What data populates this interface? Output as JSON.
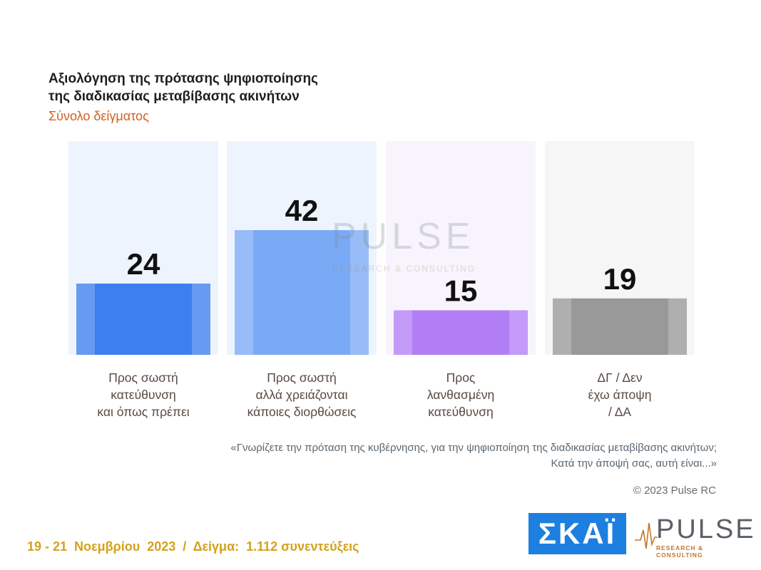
{
  "header": {
    "title_line1": "Αξιολόγηση της πρότασης ψηφιοποίησης",
    "title_line2": "της διαδικασίας μεταβίβασης ακινήτων",
    "subtitle": "Σύνολο δείγματος"
  },
  "chart_data": {
    "type": "bar",
    "categories": [
      "Προς σωστή\nκατεύθυνση\nκαι όπως πρέπει",
      "Προς σωστή\nαλλά χρειάζονται\nκάποιες διορθώσεις",
      "Προς\nλανθασμένη\nκατεύθυνση",
      "ΔΓ / Δεν\nέχω άποψη\n/ ΔΑ"
    ],
    "values": [
      24,
      42,
      15,
      19
    ],
    "value_labels": [
      "24",
      "42",
      "15",
      "19"
    ],
    "colors": [
      "#3d7ff0",
      "#7aaaf5",
      "#b27ef5",
      "#999999"
    ],
    "panel_colors": [
      "#eef4fd",
      "#eef4fd",
      "#f8f4fd",
      "#f6f6f6"
    ],
    "ylim": [
      0,
      72
    ],
    "grid": false,
    "legend": "none"
  },
  "question": {
    "line1": "«Γνωρίζετε την πρόταση της κυβέρνησης, για την ψηφιοποίηση της διαδικασίας μεταβίβασης ακινήτων;",
    "line2": "Κατά την άποψή σας, αυτή είναι...»"
  },
  "copyright": "© 2023 Pulse RC",
  "footer": "19 - 21  Νοεμβρίου  2023  /  Δείγμα:  1.112 συνεντεύξεις",
  "logos": {
    "skai": "ΣΚΑΪ",
    "pulse_word": "PULSE",
    "pulse_sub": "RESEARCH & CONSULTING",
    "watermark_word": "PULSE",
    "watermark_sub": "RESEARCH & CONSULTING"
  }
}
